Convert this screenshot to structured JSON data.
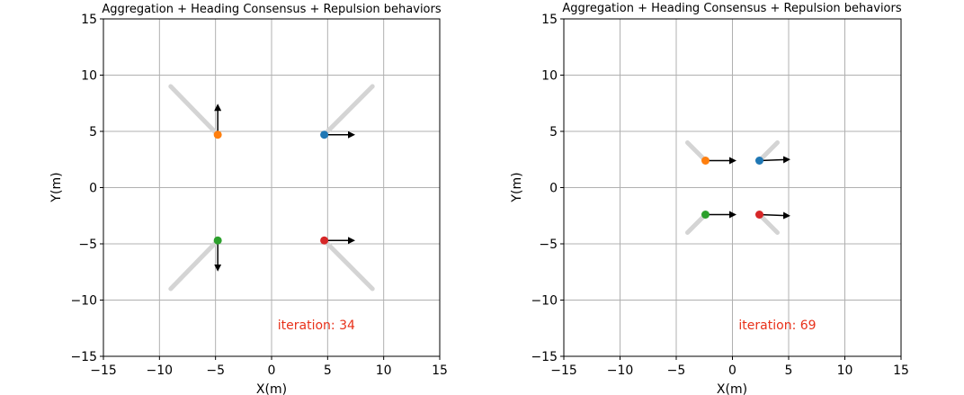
{
  "chart_data": [
    {
      "type": "scatter",
      "title": "Aggregation + Heading Consensus + Repulsion behaviors",
      "xlabel": "X(m)",
      "ylabel": "Y(m)",
      "xlim": [
        -15,
        15
      ],
      "ylim": [
        -15,
        15
      ],
      "xticks": [
        -15,
        -10,
        -5,
        0,
        5,
        10,
        15
      ],
      "yticks": [
        -15,
        -10,
        -5,
        0,
        5,
        10,
        15
      ],
      "grid": true,
      "annotation": {
        "text": "iteration: 34",
        "x": 4,
        "y": -12.6,
        "color": "#e8311a"
      },
      "agents": [
        {
          "color": "#ff7f0e",
          "x": -4.8,
          "y": 4.7,
          "heading": [
            0,
            2.6
          ],
          "trail": [
            [
              -9,
              9
            ],
            [
              -4.8,
              4.7
            ]
          ]
        },
        {
          "color": "#1f77b4",
          "x": 4.7,
          "y": 4.7,
          "heading": [
            2.6,
            0
          ],
          "trail": [
            [
              9,
              9
            ],
            [
              4.7,
              4.7
            ]
          ]
        },
        {
          "color": "#2ca02c",
          "x": -4.8,
          "y": -4.7,
          "heading": [
            0,
            -2.6
          ],
          "trail": [
            [
              -9,
              -9
            ],
            [
              -4.8,
              -4.7
            ]
          ]
        },
        {
          "color": "#d62728",
          "x": 4.7,
          "y": -4.7,
          "heading": [
            2.6,
            0
          ],
          "trail": [
            [
              9,
              -9
            ],
            [
              4.7,
              -4.7
            ]
          ]
        }
      ]
    },
    {
      "type": "scatter",
      "title": "Aggregation + Heading Consensus + Repulsion behaviors",
      "xlabel": "X(m)",
      "ylabel": "Y(m)",
      "xlim": [
        -15,
        15
      ],
      "ylim": [
        -15,
        15
      ],
      "xticks": [
        -15,
        -10,
        -5,
        0,
        5,
        10,
        15
      ],
      "yticks": [
        -15,
        -10,
        -5,
        0,
        5,
        10,
        15
      ],
      "grid": true,
      "annotation": {
        "text": "iteration: 69",
        "x": 4,
        "y": -12.6,
        "color": "#e8311a"
      },
      "agents": [
        {
          "color": "#ff7f0e",
          "x": -2.4,
          "y": 2.4,
          "heading": [
            2.6,
            0
          ],
          "trail": [
            [
              -4,
              4
            ],
            [
              -2.4,
              2.4
            ]
          ]
        },
        {
          "color": "#1f77b4",
          "x": 2.4,
          "y": 2.4,
          "heading": [
            2.6,
            0.1
          ],
          "trail": [
            [
              4,
              4
            ],
            [
              2.4,
              2.4
            ]
          ]
        },
        {
          "color": "#2ca02c",
          "x": -2.4,
          "y": -2.4,
          "heading": [
            2.6,
            0
          ],
          "trail": [
            [
              -4,
              -4
            ],
            [
              -2.4,
              -2.4
            ]
          ]
        },
        {
          "color": "#d62728",
          "x": 2.4,
          "y": -2.4,
          "heading": [
            2.6,
            -0.1
          ],
          "trail": [
            [
              4,
              -4
            ],
            [
              2.4,
              -2.4
            ]
          ]
        }
      ]
    }
  ]
}
